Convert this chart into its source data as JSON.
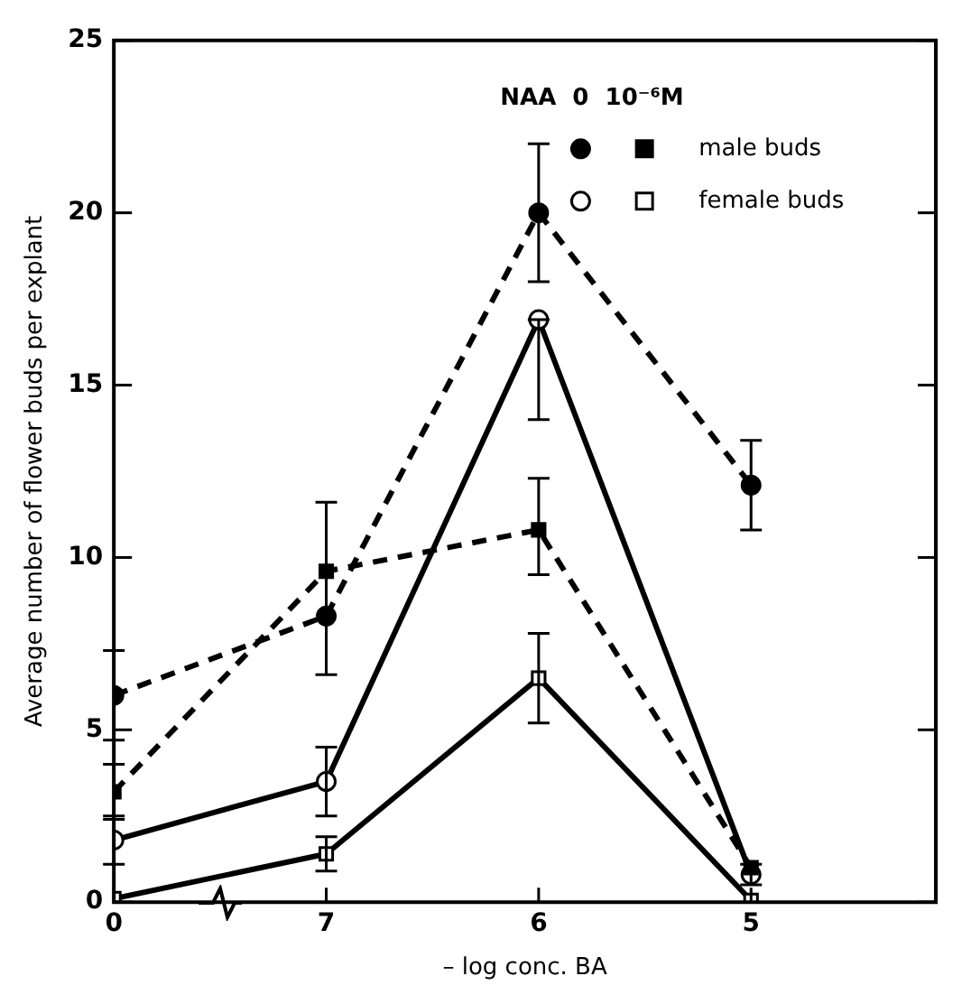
{
  "chart_data": {
    "type": "line",
    "xlabel": "– log conc. BA",
    "ylabel": "Average number of flower buds per explant",
    "legend_title": "NAA  0  10⁻⁶M",
    "legend": "top right",
    "categories": [
      "0",
      "7",
      "6",
      "5"
    ],
    "ylim": [
      0,
      25
    ],
    "yticks": [
      0,
      5,
      10,
      15,
      20,
      25
    ],
    "grid": false,
    "series": [
      {
        "color": "#000000",
        "marker": "circle",
        "line_style": "dashed",
        "values": [
          6.0,
          8.3,
          20.0,
          12.1
        ],
        "errors": [
          1.3,
          [
            6.6,
            11.6
          ],
          2.0,
          1.3
        ]
      },
      {
        "name": "male buds",
        "color": "#000000",
        "marker": "square",
        "line_style": "dashed",
        "values": [
          3.2,
          9.6,
          10.8,
          1.0
        ],
        "errors": [
          0.8,
          null,
          [
            9.5,
            12.3
          ],
          null
        ]
      },
      {
        "color": "#000000",
        "marker": "circle",
        "line_style": "solid",
        "values": [
          1.8,
          3.5,
          16.9,
          0.8
        ],
        "errors": [
          0.7,
          1.0,
          [
            14.0,
            16.9
          ],
          0.3
        ]
      },
      {
        "name": "female buds",
        "color": "#000000",
        "marker": "square",
        "line_style": "solid",
        "values": [
          0.1,
          1.4,
          6.5,
          0.05
        ],
        "errors": [
          null,
          0.5,
          1.3,
          null
        ]
      }
    ]
  }
}
